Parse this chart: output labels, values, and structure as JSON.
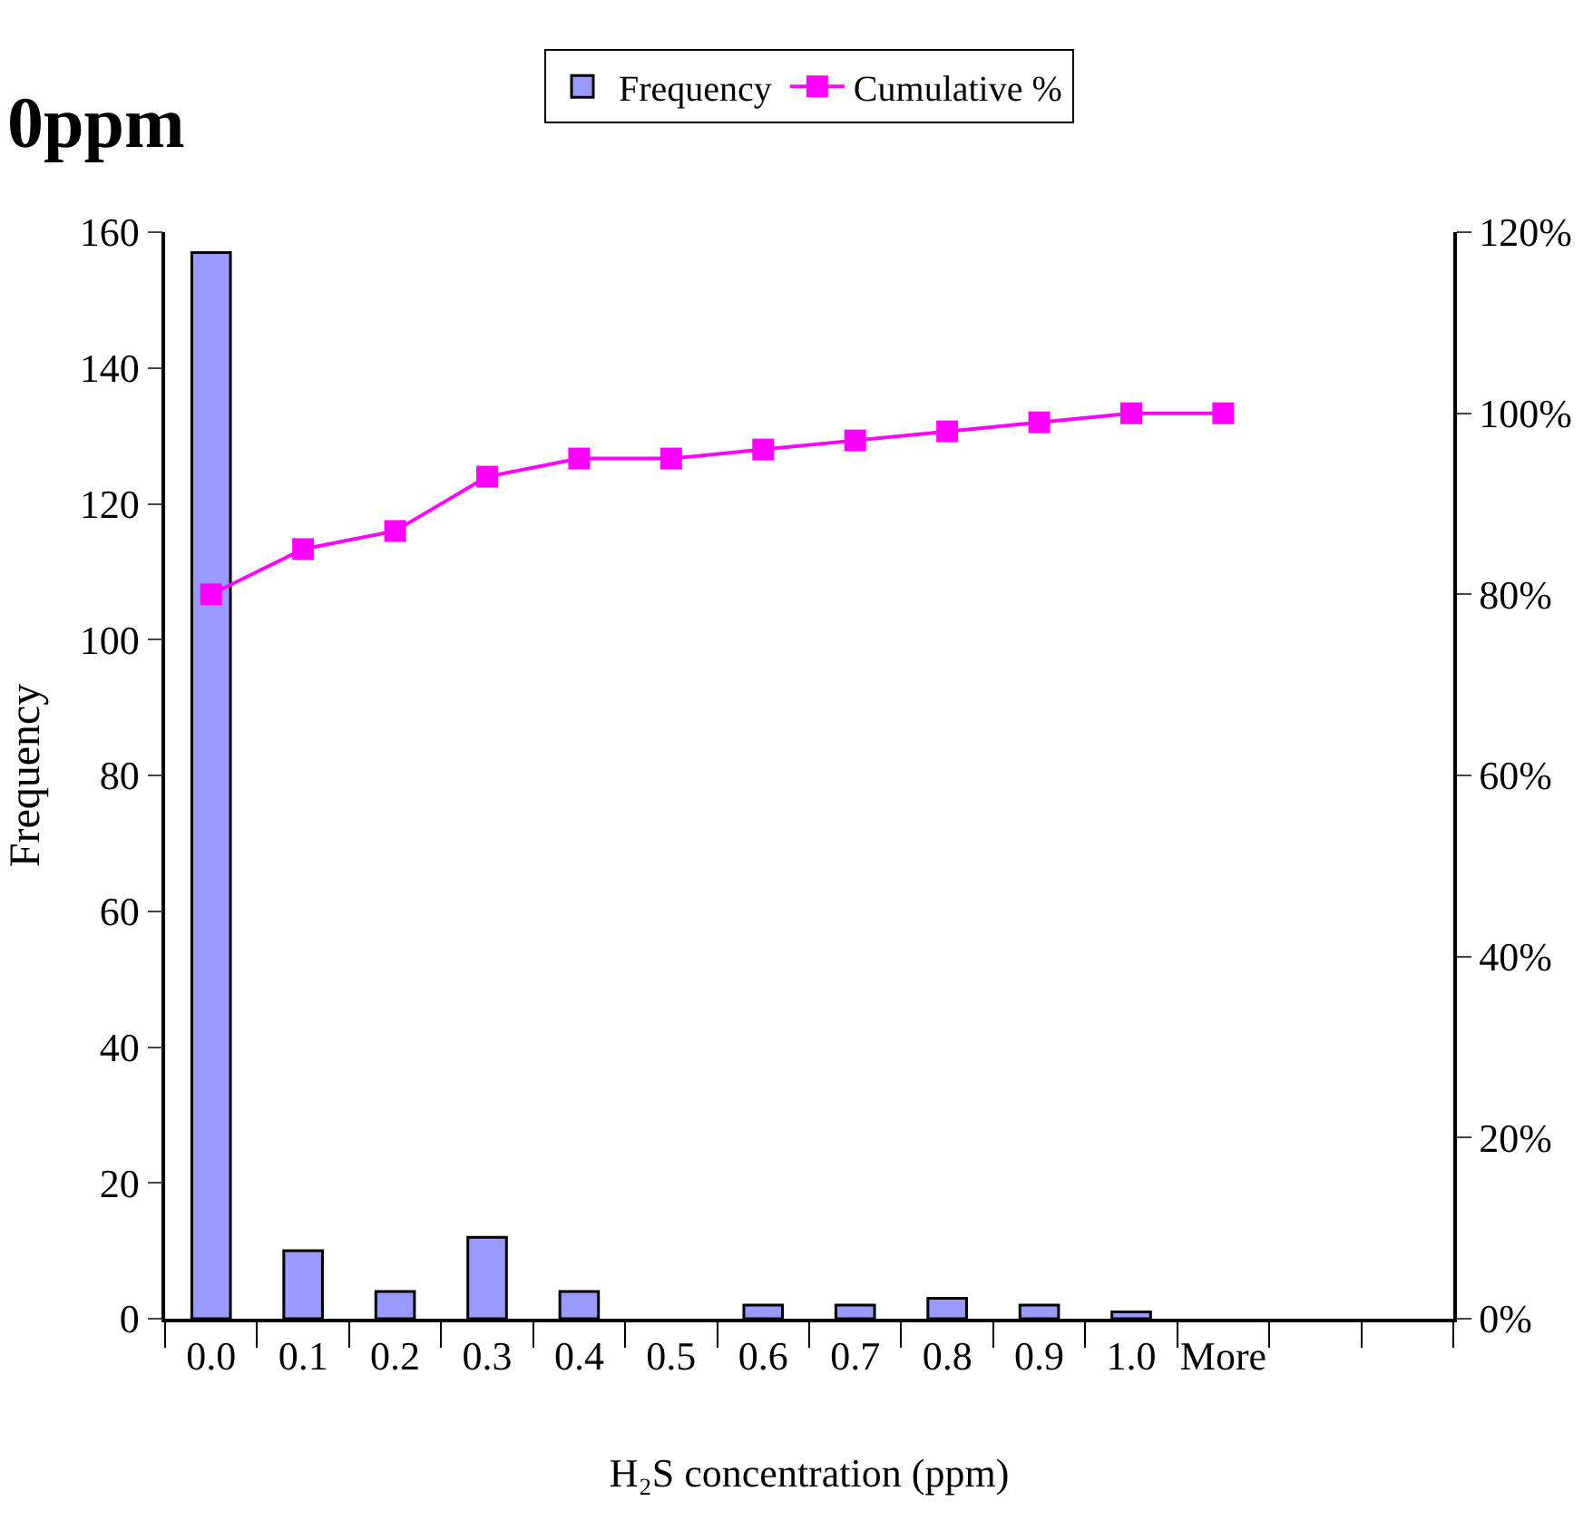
{
  "chart_data": {
    "type": "bar",
    "title": "0ppm",
    "xlabel": "H₂S concentration (ppm)",
    "ylabel": "Frequency",
    "categories": [
      "0.0",
      "0.1",
      "0.2",
      "0.3",
      "0.4",
      "0.5",
      "0.6",
      "0.7",
      "0.8",
      "0.9",
      "1.0",
      "More",
      null,
      null
    ],
    "series": [
      {
        "name": "Frequency",
        "color": "#9999ff",
        "values": [
          157,
          10,
          4,
          12,
          4,
          0,
          2,
          2,
          3,
          2,
          1,
          0,
          null,
          null
        ]
      },
      {
        "name": "Cumulative %",
        "type": "line",
        "axis": "y2",
        "color": "#ff00ff",
        "marker": "square",
        "values": [
          80,
          85,
          87,
          93,
          95,
          95,
          96,
          97,
          98,
          99,
          100,
          100,
          null,
          null
        ]
      }
    ],
    "ylim": [
      0,
      160
    ],
    "yticks": [
      0,
      20,
      40,
      60,
      80,
      100,
      120,
      140,
      160
    ],
    "y2lim": [
      0,
      120
    ],
    "y2ticks": [
      {
        "value": 0,
        "label": "0%"
      },
      {
        "value": 20,
        "label": "20%"
      },
      {
        "value": 40,
        "label": "40%"
      },
      {
        "value": 60,
        "label": "60%"
      },
      {
        "value": 80,
        "label": "80%"
      },
      {
        "value": 100,
        "label": "100%"
      },
      {
        "value": 120,
        "label": "120%"
      }
    ],
    "legend": "top"
  }
}
